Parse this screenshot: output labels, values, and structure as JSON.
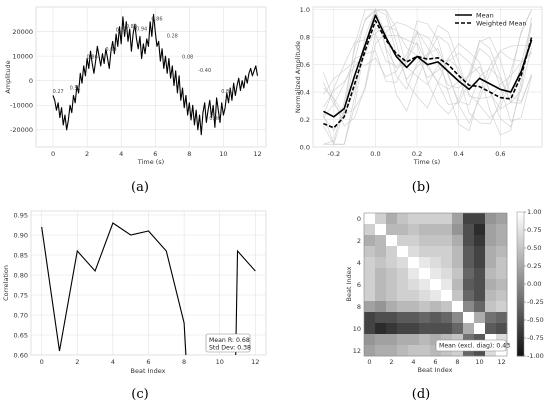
{
  "chart_data": [
    {
      "panel": "(a)",
      "type": "line",
      "xlabel": "Time (s)",
      "ylabel": "Amplitude",
      "xlim": [
        -1,
        12.5
      ],
      "ylim": [
        -27000,
        30000
      ],
      "xticks": [
        "0",
        "2",
        "4",
        "6",
        "8",
        "10",
        "12"
      ],
      "yticks": [
        "-20000",
        "-10000",
        "0",
        "10000",
        "20000"
      ],
      "grid": true,
      "series": [
        {
          "x": [
            0,
            0.1,
            0.2,
            0.3,
            0.4,
            0.5,
            0.6,
            0.7,
            0.8,
            0.9,
            1.0,
            1.1,
            1.2,
            1.3,
            1.4,
            1.5,
            1.6,
            1.7,
            1.8,
            1.9,
            2.0,
            2.1,
            2.2,
            2.3,
            2.4,
            2.5,
            2.6,
            2.7,
            2.8,
            2.9,
            3.0,
            3.1,
            3.2,
            3.3,
            3.4,
            3.5,
            3.6,
            3.7,
            3.8,
            3.9,
            4.0,
            4.1,
            4.2,
            4.3,
            4.4,
            4.5,
            4.6,
            4.7,
            4.8,
            4.9,
            5.0,
            5.1,
            5.2,
            5.3,
            5.4,
            5.5,
            5.6,
            5.7,
            5.8,
            5.9,
            6.0,
            6.1,
            6.2,
            6.3,
            6.4,
            6.5,
            6.6,
            6.7,
            6.8,
            6.9,
            7.0,
            7.1,
            7.2,
            7.3,
            7.4,
            7.5,
            7.6,
            7.7,
            7.8,
            7.9,
            8.0,
            8.1,
            8.2,
            8.3,
            8.4,
            8.5,
            8.6,
            8.7,
            8.8,
            8.9,
            9.0,
            9.1,
            9.2,
            9.3,
            9.4,
            9.5,
            9.6,
            9.7,
            9.8,
            9.9,
            10.0,
            10.1,
            10.2,
            10.3,
            10.4,
            10.5,
            10.6,
            10.7,
            10.8,
            10.9,
            11.0,
            11.1,
            11.2,
            11.3,
            11.4,
            11.5,
            11.6,
            11.7,
            11.8,
            11.9,
            12.0
          ],
          "values": [
            -6000,
            -8000,
            -12000,
            -9000,
            -15000,
            -11000,
            -18000,
            -14000,
            -20000,
            -16000,
            -10000,
            -13000,
            -6000,
            -9000,
            -2000,
            -5000,
            3000,
            -1000,
            6000,
            2000,
            9000,
            5000,
            12000,
            7000,
            3000,
            8000,
            14000,
            10000,
            6000,
            11000,
            7000,
            13000,
            9000,
            5000,
            12000,
            16000,
            11000,
            19000,
            14000,
            22000,
            15000,
            26000,
            18000,
            24000,
            16000,
            21000,
            12000,
            19000,
            23000,
            17000,
            13000,
            18000,
            9000,
            15000,
            11000,
            17000,
            14000,
            24000,
            18000,
            27000,
            20000,
            14000,
            16000,
            8000,
            13000,
            5000,
            10000,
            3000,
            9000,
            1000,
            6000,
            -2000,
            4000,
            -5000,
            2000,
            -8000,
            -3000,
            -11000,
            -6000,
            -14000,
            -9000,
            -16000,
            -10000,
            -18000,
            -12000,
            -20000,
            -14000,
            -22000,
            -13000,
            -9000,
            -17000,
            -12000,
            -8000,
            -15000,
            -10000,
            -19000,
            -7000,
            -12000,
            -17000,
            -9000,
            -14000,
            -11000,
            -5000,
            -9000,
            -3000,
            -8000,
            -1000,
            -6000,
            -2000,
            1000,
            -4000,
            0,
            -3000,
            2000,
            -1000,
            3000,
            5000,
            2000,
            4000,
            6000,
            2000
          ]
        }
      ],
      "annotations": [
        {
          "text": "0.27",
          "x": 0.3,
          "y": -5000
        },
        {
          "text": "0.51",
          "x": 1.3,
          "y": -3500
        },
        {
          "text": "0.86",
          "x": 2.3,
          "y": 9000
        },
        {
          "text": "0.80",
          "x": 3.4,
          "y": 12000
        },
        {
          "text": "0.22",
          "x": 4.0,
          "y": 20000
        },
        {
          "text": "0.80",
          "x": 4.6,
          "y": 21500
        },
        {
          "text": "0.94",
          "x": 5.2,
          "y": 20500
        },
        {
          "text": "0.86",
          "x": 6.1,
          "y": 24500
        },
        {
          "text": "0.28",
          "x": 7.0,
          "y": 17500
        },
        {
          "text": "0.08",
          "x": 7.9,
          "y": 9000
        },
        {
          "text": "-0.40",
          "x": 8.9,
          "y": 3500
        },
        {
          "text": "0.86",
          "x": 9.5,
          "y": -16000
        },
        {
          "text": "0.81",
          "x": 10.2,
          "y": -5000
        }
      ]
    },
    {
      "panel": "(b)",
      "type": "line",
      "xlabel": "Time (s)",
      "ylabel": "Normalized Amplitude",
      "xlim": [
        -0.3,
        0.8
      ],
      "ylim": [
        0,
        1.02
      ],
      "xticks": [
        "-0.2",
        "0.0",
        "0.2",
        "0.4",
        "0.6"
      ],
      "yticks": [
        "0.0",
        "0.2",
        "0.4",
        "0.6",
        "0.8",
        "1.0"
      ],
      "grid": true,
      "legend": {
        "placement": "top-right",
        "entries": [
          "Mean",
          "Weighted Mean"
        ]
      },
      "series": [
        {
          "name": "Mean",
          "x": [
            -0.25,
            -0.2,
            -0.15,
            -0.1,
            -0.05,
            0.0,
            0.05,
            0.1,
            0.15,
            0.2,
            0.25,
            0.3,
            0.35,
            0.4,
            0.45,
            0.5,
            0.55,
            0.6,
            0.65,
            0.7,
            0.75
          ],
          "values": [
            0.26,
            0.22,
            0.28,
            0.52,
            0.74,
            0.96,
            0.8,
            0.66,
            0.58,
            0.66,
            0.6,
            0.62,
            0.55,
            0.48,
            0.42,
            0.5,
            0.46,
            0.42,
            0.4,
            0.55,
            0.78
          ]
        },
        {
          "name": "Weighted Mean",
          "x": [
            -0.25,
            -0.2,
            -0.15,
            -0.1,
            -0.05,
            0.0,
            0.05,
            0.1,
            0.15,
            0.2,
            0.25,
            0.3,
            0.35,
            0.4,
            0.45,
            0.5,
            0.55,
            0.6,
            0.65,
            0.7,
            0.75
          ],
          "values": [
            0.17,
            0.14,
            0.22,
            0.46,
            0.7,
            0.92,
            0.78,
            0.68,
            0.62,
            0.66,
            0.64,
            0.65,
            0.6,
            0.52,
            0.45,
            0.44,
            0.4,
            0.36,
            0.35,
            0.52,
            0.8
          ]
        }
      ]
    },
    {
      "panel": "(c)",
      "type": "line",
      "xlabel": "Beat Index",
      "ylabel": "Correlation",
      "xlim": [
        -0.6,
        12.6
      ],
      "ylim": [
        0.6,
        0.96
      ],
      "xticks": [
        "0",
        "2",
        "4",
        "6",
        "8",
        "10",
        "12"
      ],
      "yticks": [
        "0.60",
        "0.65",
        "0.70",
        "0.75",
        "0.80",
        "0.85",
        "0.90",
        "0.95"
      ],
      "grid": true,
      "series": [
        {
          "x": [
            0,
            1,
            2,
            3,
            4,
            5,
            6,
            7,
            8,
            8.1,
            10.9,
            11,
            12
          ],
          "values": [
            0.92,
            0.61,
            0.86,
            0.81,
            0.93,
            0.9,
            0.91,
            0.86,
            0.68,
            0.6,
            0.6,
            0.86,
            0.81
          ]
        }
      ],
      "stats_box": {
        "line1": "Mean R: 0.68",
        "line2": "Std Dev: 0.38"
      }
    },
    {
      "panel": "(d)",
      "type": "heatmap",
      "xlabel": "Beat Index",
      "ylabel": "Beat Index",
      "xticks": [
        "0",
        "2",
        "4",
        "6",
        "8",
        "10",
        "12"
      ],
      "yticks": [
        "0",
        "2",
        "4",
        "6",
        "8",
        "10",
        "12"
      ],
      "colorbar_ticks": [
        "1.00",
        "0.75",
        "0.50",
        "0.25",
        "0.00",
        "-0.25",
        "-0.50",
        "-0.75",
        "-1.00"
      ],
      "stat_label": "Mean (excl. diag): 0.43",
      "matrix": [
        [
          1.0,
          0.6,
          0.3,
          0.5,
          0.6,
          0.6,
          0.6,
          0.6,
          0.2,
          -0.6,
          -0.6,
          0.1,
          0.2
        ],
        [
          0.6,
          1.0,
          0.4,
          0.4,
          0.5,
          0.4,
          0.4,
          0.4,
          0.1,
          -0.5,
          -0.8,
          0.2,
          0.3
        ],
        [
          0.3,
          0.4,
          1.0,
          0.6,
          0.6,
          0.5,
          0.5,
          0.5,
          0.3,
          -0.5,
          -0.7,
          0.2,
          0.3
        ],
        [
          0.5,
          0.4,
          0.6,
          1.0,
          0.7,
          0.6,
          0.6,
          0.6,
          0.4,
          -0.4,
          -0.6,
          0.3,
          0.4
        ],
        [
          0.6,
          0.5,
          0.6,
          0.7,
          1.0,
          0.8,
          0.7,
          0.6,
          0.4,
          -0.4,
          -0.6,
          0.3,
          0.5
        ],
        [
          0.6,
          0.4,
          0.5,
          0.6,
          0.8,
          1.0,
          0.8,
          0.7,
          0.5,
          -0.3,
          -0.5,
          0.4,
          0.5
        ],
        [
          0.6,
          0.4,
          0.5,
          0.6,
          0.7,
          0.8,
          1.0,
          0.8,
          0.4,
          -0.4,
          -0.5,
          0.3,
          0.4
        ],
        [
          0.6,
          0.4,
          0.5,
          0.6,
          0.6,
          0.7,
          0.8,
          1.0,
          0.5,
          -0.3,
          -0.5,
          0.4,
          0.5
        ],
        [
          0.2,
          0.1,
          0.3,
          0.4,
          0.4,
          0.5,
          0.4,
          0.5,
          1.0,
          0.0,
          -0.3,
          0.5,
          0.6
        ],
        [
          -0.6,
          -0.5,
          -0.5,
          -0.4,
          -0.4,
          -0.3,
          -0.4,
          -0.3,
          0.0,
          1.0,
          0.3,
          -0.2,
          -0.3
        ],
        [
          -0.6,
          -0.8,
          -0.7,
          -0.6,
          -0.6,
          -0.5,
          -0.5,
          -0.5,
          -0.3,
          0.3,
          1.0,
          -0.4,
          -0.5
        ],
        [
          0.1,
          0.2,
          0.2,
          0.3,
          0.3,
          0.4,
          0.3,
          0.4,
          0.5,
          -0.2,
          -0.4,
          1.0,
          0.7
        ],
        [
          0.2,
          0.3,
          0.3,
          0.4,
          0.5,
          0.5,
          0.4,
          0.5,
          0.6,
          -0.3,
          -0.5,
          0.7,
          1.0
        ]
      ]
    }
  ]
}
